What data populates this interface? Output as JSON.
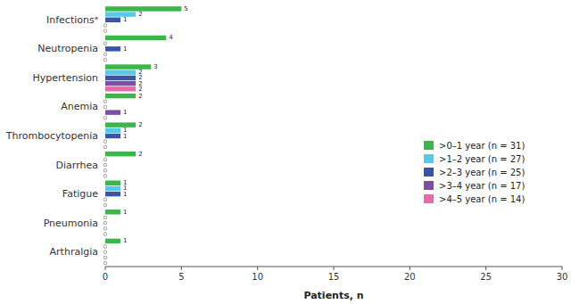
{
  "chart_data": {
    "type": "bar",
    "orientation": "horizontal",
    "categories": [
      "Infectionsᵃ",
      "Neutropenia",
      "Hypertension",
      "Anemia",
      "Thrombocytopenia",
      "Diarrhea",
      "Fatigue",
      "Pneumonia",
      "Arthralgia"
    ],
    "series": [
      {
        "name": ">0–1 year (n = 31)",
        "color": "#3cb54a",
        "values": [
          5,
          4,
          3,
          2,
          2,
          2,
          1,
          1,
          1
        ]
      },
      {
        "name": ">1–2 year (n = 27)",
        "color": "#57c9e8",
        "values": [
          2,
          0,
          2,
          0,
          1,
          0,
          1,
          0,
          0
        ]
      },
      {
        "name": ">2–3 year (n = 25)",
        "color": "#3a55a4",
        "values": [
          1,
          1,
          2,
          0,
          1,
          0,
          1,
          0,
          0
        ]
      },
      {
        "name": ">3–4 year (n = 17)",
        "color": "#7b4fa6",
        "values": [
          0,
          0,
          2,
          1,
          0,
          0,
          0,
          0,
          0
        ]
      },
      {
        "name": ">4–5 year (n = 14)",
        "color": "#e96aaa",
        "values": [
          0,
          0,
          2,
          0,
          0,
          0,
          0,
          0,
          0
        ]
      }
    ],
    "xlabel": "Patients, n",
    "xlim": [
      0,
      30
    ],
    "xticks": [
      0,
      5,
      10,
      15,
      20,
      25,
      30
    ],
    "grid": false,
    "legend": "right",
    "data_labels": true
  }
}
